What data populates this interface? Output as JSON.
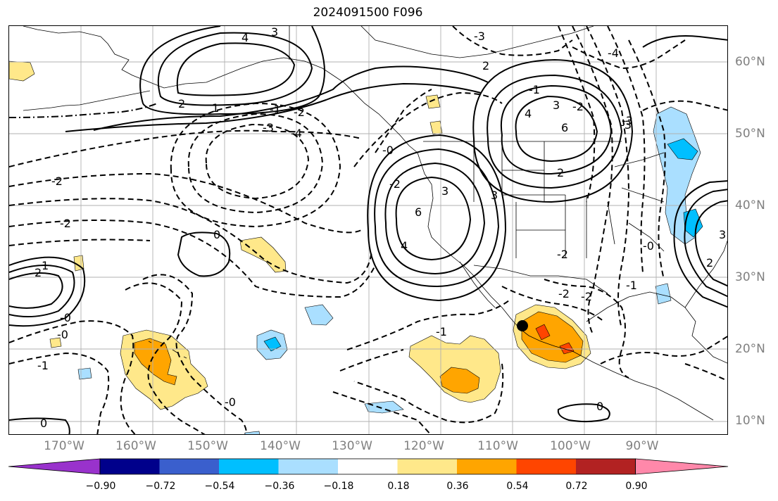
{
  "title": "2024091500 F096",
  "lon_labels": [
    "170°W",
    "160°W",
    "150°W",
    "140°W",
    "130°W",
    "120°W",
    "110°W",
    "100°W",
    "90°W"
  ],
  "lat_labels": [
    "60°N",
    "50°N",
    "40°N",
    "30°N",
    "20°N",
    "10°N"
  ],
  "contour_labels": {
    "pos": [
      "4",
      "3",
      "2",
      "2",
      "1",
      "4",
      "3",
      "6",
      "2",
      "6",
      "4",
      "3",
      "2",
      "1",
      "0",
      "3",
      "3",
      "2",
      "0",
      "0"
    ],
    "neg": [
      "-3",
      "-2",
      "-3",
      "-4",
      "-1",
      "-2",
      "-2",
      "-2",
      "-0",
      "-1",
      "-2",
      "-2",
      "-3",
      "-4",
      "-1",
      "-0",
      "-1",
      "-0",
      "-0",
      "-2",
      "-1",
      "-2",
      "-3",
      "-0"
    ]
  },
  "colorbar": {
    "ticks": [
      "−0.90",
      "−0.72",
      "−0.54",
      "−0.36",
      "−0.18",
      "0.18",
      "0.36",
      "0.54",
      "0.72",
      "0.90"
    ],
    "colors": [
      "#9932cc",
      "#00008b",
      "#3a5fcd",
      "#00bfff",
      "#aadfff",
      "#ffffff",
      "#ffe88a",
      "#ffa500",
      "#ff4500",
      "#b22222",
      "#ff88aa"
    ]
  },
  "marker": "black-dot"
}
